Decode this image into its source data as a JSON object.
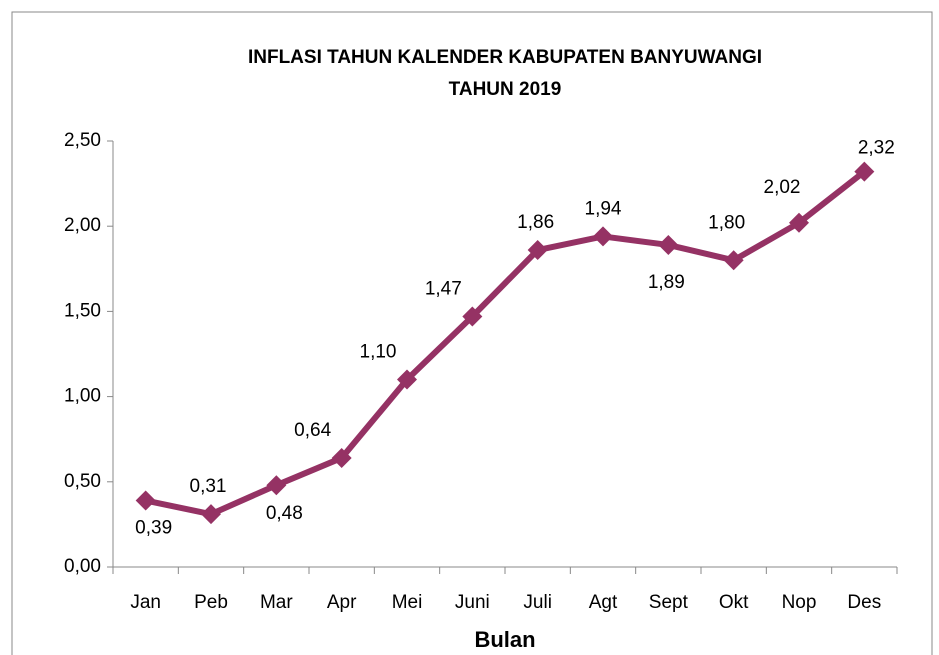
{
  "chart_data": {
    "type": "line",
    "title": [
      "INFLASI TAHUN KALENDER KABUPATEN BANYUWANGI",
      "TAHUN 2019"
    ],
    "x_label": "Bulan",
    "categories": [
      "Jan",
      "Peb",
      "Mar",
      "Apr",
      "Mei",
      "Juni",
      "Juli",
      "Agt",
      "Sept",
      "Okt",
      "Nop",
      "Des"
    ],
    "values": [
      0.39,
      0.31,
      0.48,
      0.64,
      1.1,
      1.47,
      1.86,
      1.94,
      1.89,
      1.8,
      2.02,
      2.32
    ],
    "value_labels": [
      "0,39",
      "0,31",
      "0,48",
      "0,64",
      "1,10",
      "1,47",
      "1,86",
      "1,94",
      "1,89",
      "1,80",
      "2,02",
      "2,32"
    ],
    "color": "#953264",
    "ylim": [
      0,
      2.5
    ],
    "yticks": [
      {
        "value": 0,
        "label": "0,00"
      },
      {
        "value": 0.5,
        "label": "0,50"
      },
      {
        "value": 1,
        "label": "1,00"
      },
      {
        "value": 1.5,
        "label": "1,50"
      },
      {
        "value": 2,
        "label": "2,00"
      },
      {
        "value": 2.5,
        "label": "2,50"
      }
    ],
    "grid": false
  }
}
